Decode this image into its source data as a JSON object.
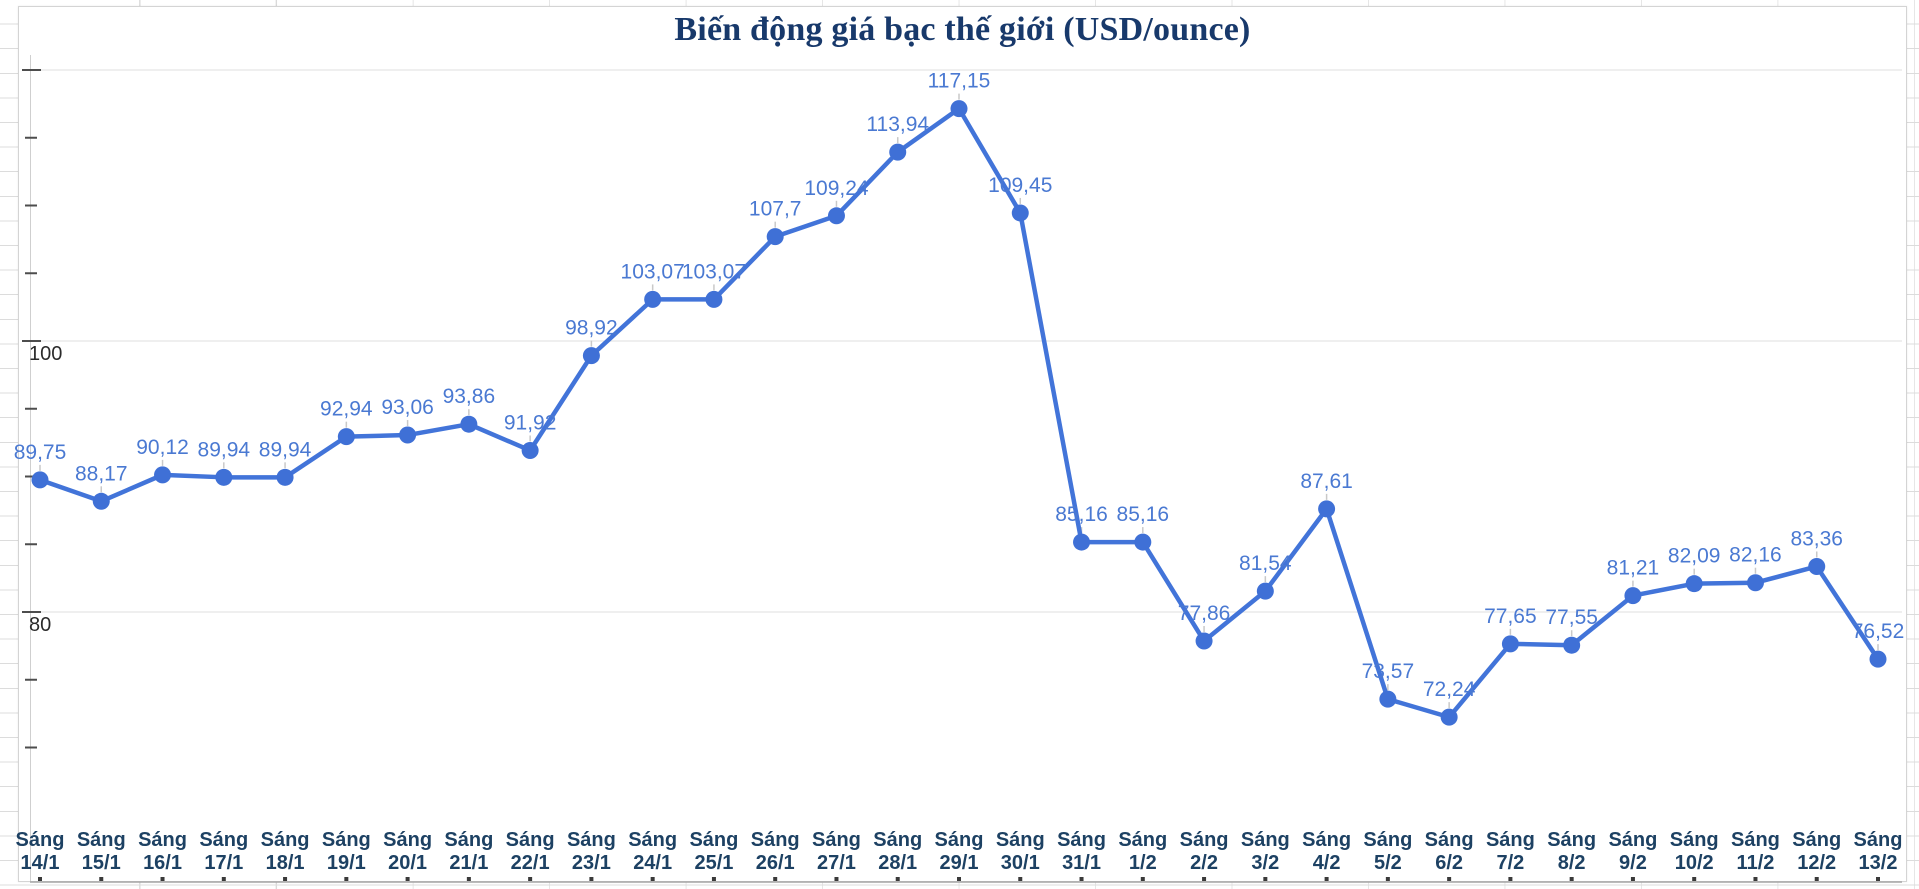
{
  "chart": {
    "title": "Biến động giá bạc thế giới (USD/ounce)"
  },
  "chart_data": {
    "type": "line",
    "title": "Biến động giá bạc thế giới (USD/ounce)",
    "categories": [
      "Sáng 14/1",
      "Sáng 15/1",
      "Sáng 16/1",
      "Sáng 17/1",
      "Sáng 18/1",
      "Sáng 19/1",
      "Sáng 20/1",
      "Sáng 21/1",
      "Sáng 22/1",
      "Sáng 23/1",
      "Sáng 24/1",
      "Sáng 25/1",
      "Sáng 26/1",
      "Sáng 27/1",
      "Sáng 28/1",
      "Sáng 29/1",
      "Sáng 30/1",
      "Sáng 31/1",
      "Sáng 1/2",
      "Sáng 2/2",
      "Sáng 3/2",
      "Sáng 4/2",
      "Sáng 5/2",
      "Sáng 6/2",
      "Sáng 7/2",
      "Sáng 8/2",
      "Sáng 9/2",
      "Sáng 10/2",
      "Sáng 11/2",
      "Sáng 12/2",
      "Sáng 13/2"
    ],
    "values": [
      89.75,
      88.17,
      90.12,
      89.94,
      89.94,
      92.94,
      93.06,
      93.86,
      91.92,
      98.92,
      103.07,
      103.07,
      107.7,
      109.24,
      113.94,
      117.15,
      109.45,
      85.16,
      85.16,
      77.86,
      81.54,
      87.61,
      73.57,
      72.24,
      77.65,
      77.55,
      81.21,
      82.09,
      82.16,
      83.36,
      76.52
    ],
    "value_labels": [
      "89,75",
      "88,17",
      "90,12",
      "89,94",
      "89,94",
      "92,94",
      "93,06",
      "93,86",
      "91,92",
      "98,92",
      "103,07",
      "103,07",
      "107,7",
      "109,24",
      "113,94",
      "117,15",
      "109,45",
      "85,16",
      "85,16",
      "77,86",
      "81,54",
      "87,61",
      "73,57",
      "72,24",
      "77,65",
      "77,55",
      "81,21",
      "82,09",
      "82,16",
      "83,36",
      "76,52"
    ],
    "xlabel": "",
    "ylabel": "",
    "ylim": [
      68,
      122
    ],
    "y_axis": {
      "labeled_ticks": [
        100,
        80
      ],
      "gridlines": [
        120,
        100,
        80
      ],
      "minor_ticks": [
        70,
        75,
        80,
        85,
        90,
        95,
        100,
        105,
        110,
        115,
        120
      ]
    },
    "grid": "horizontal-only",
    "legend": "none",
    "colors": {
      "line": "#4274d9",
      "marker": "#3f70d6",
      "label": "#4a79d2",
      "title": "#18396b",
      "x_label": "#1d4163",
      "y_label": "#2b2b2b",
      "gridline": "#e5e5e5",
      "axis": "#a6a6a6",
      "leader": "#c9c9c9",
      "tick": "#4d4d4d"
    }
  }
}
